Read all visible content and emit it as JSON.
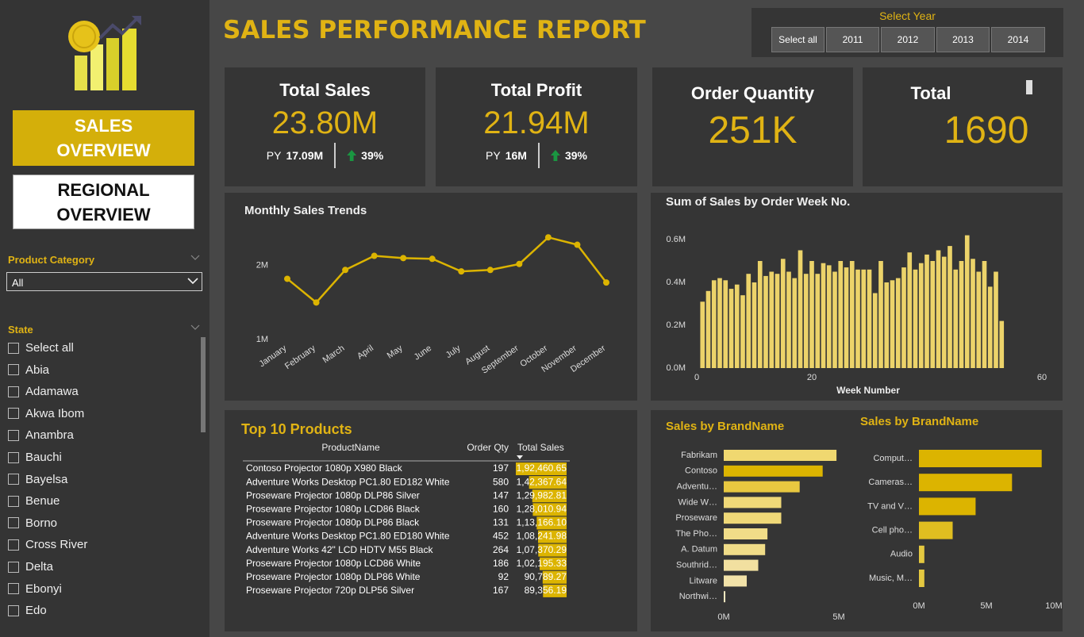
{
  "header": {
    "title": "SALES PERFORMANCE REPORT"
  },
  "nav": {
    "buttons": [
      "SALES OVERVIEW",
      "REGIONAL OVERVIEW"
    ]
  },
  "year_slicer": {
    "title": "Select Year",
    "options": [
      "Select all",
      "2011",
      "2012",
      "2013",
      "2014"
    ]
  },
  "category_slicer": {
    "title": "Product Category",
    "selected": "All"
  },
  "state_slicer": {
    "title": "State",
    "options": [
      "Select all",
      "Abia",
      "Adamawa",
      "Akwa Ibom",
      "Anambra",
      "Bauchi",
      "Bayelsa",
      "Benue",
      "Borno",
      "Cross River",
      "Delta",
      "Ebonyi",
      "Edo"
    ]
  },
  "kpis": [
    {
      "title": "Total Sales",
      "value": "23.80M",
      "py_label": "PY",
      "py_value": "17.09M",
      "change": "39%"
    },
    {
      "title": "Total Profit",
      "value": "21.94M",
      "py_label": "PY",
      "py_value": "16M",
      "change": "39%"
    },
    {
      "title": "Order Quantity",
      "value": "251K"
    },
    {
      "title": "Total",
      "value": "1690"
    }
  ],
  "table": {
    "title": "Top 10 Products",
    "columns": [
      "ProductName",
      "Order Qty",
      "Total Sales"
    ],
    "bar_color": "#dcb400",
    "rows": [
      {
        "product": "Contoso Projector 1080p X980 Black",
        "qty": 197,
        "sales": 192460.65,
        "sales_label": "1,92,460.65"
      },
      {
        "product": "Adventure Works Desktop PC1.80 ED182 White",
        "qty": 580,
        "sales": 142367.64,
        "sales_label": "1,42,367.64"
      },
      {
        "product": "Proseware Projector 1080p DLP86 Silver",
        "qty": 147,
        "sales": 129982.81,
        "sales_label": "1,29,982.81"
      },
      {
        "product": "Proseware Projector 1080p LCD86 Black",
        "qty": 160,
        "sales": 128010.94,
        "sales_label": "1,28,010.94"
      },
      {
        "product": "Proseware Projector 1080p DLP86 Black",
        "qty": 131,
        "sales": 113166.1,
        "sales_label": "1,13,166.10"
      },
      {
        "product": "Adventure Works Desktop PC1.80 ED180 White",
        "qty": 452,
        "sales": 108241.98,
        "sales_label": "1,08,241.98"
      },
      {
        "product": "Adventure Works 42\" LCD HDTV M55 Black",
        "qty": 264,
        "sales": 107370.29,
        "sales_label": "1,07,370.29"
      },
      {
        "product": "Proseware Projector 1080p LCD86 White",
        "qty": 186,
        "sales": 102195.33,
        "sales_label": "1,02,195.33"
      },
      {
        "product": "Proseware Projector 1080p DLP86 White",
        "qty": 92,
        "sales": 90789.27,
        "sales_label": "90,789.27"
      },
      {
        "product": "Proseware Projector 720p DLP56 Silver",
        "qty": 167,
        "sales": 89356.19,
        "sales_label": "89,356.19"
      }
    ]
  },
  "chart_data": [
    {
      "type": "line",
      "title": "Monthly Sales Trends",
      "color": "#dcb400",
      "categories": [
        "January",
        "February",
        "March",
        "April",
        "May",
        "June",
        "July",
        "August",
        "September",
        "October",
        "November",
        "December"
      ],
      "values": [
        1820000,
        1500000,
        1940000,
        2130000,
        2100000,
        2090000,
        1920000,
        1940000,
        2020000,
        2380000,
        2280000,
        1770000
      ],
      "ylim": [
        1000000,
        2500000
      ],
      "yticks": [
        {
          "value": 1000000,
          "label": "1M"
        },
        {
          "value": 2000000,
          "label": "2M"
        }
      ]
    },
    {
      "type": "bar",
      "title": "Sum of Sales by Order Week No.",
      "x_label": "Week Number",
      "color": "#ecd36a",
      "x": [
        1,
        2,
        3,
        4,
        5,
        6,
        7,
        8,
        9,
        10,
        11,
        12,
        13,
        14,
        15,
        16,
        17,
        18,
        19,
        20,
        21,
        22,
        23,
        24,
        25,
        26,
        27,
        28,
        29,
        30,
        31,
        32,
        33,
        34,
        35,
        36,
        37,
        38,
        39,
        40,
        41,
        42,
        43,
        44,
        45,
        46,
        47,
        48,
        49,
        50,
        51,
        52,
        53
      ],
      "values": [
        310000,
        360000,
        410000,
        420000,
        410000,
        370000,
        390000,
        340000,
        440000,
        400000,
        500000,
        430000,
        450000,
        440000,
        510000,
        450000,
        420000,
        550000,
        440000,
        500000,
        440000,
        490000,
        480000,
        450000,
        500000,
        470000,
        500000,
        460000,
        460000,
        460000,
        350000,
        500000,
        400000,
        410000,
        420000,
        470000,
        540000,
        460000,
        490000,
        530000,
        500000,
        550000,
        520000,
        570000,
        460000,
        500000,
        620000,
        510000,
        450000,
        500000,
        380000,
        450000,
        220000
      ],
      "xlim": [
        0,
        60
      ],
      "xticks": [
        0,
        20,
        60
      ],
      "ylim": [
        0,
        650000
      ],
      "yticks": [
        {
          "value": 0,
          "label": "0.0M"
        },
        {
          "value": 200000,
          "label": "0.2M"
        },
        {
          "value": 400000,
          "label": "0.4M"
        },
        {
          "value": 600000,
          "label": "0.6M"
        }
      ]
    },
    {
      "type": "hbar",
      "title": "Sales by BrandName",
      "categories": [
        "Fabrikam",
        "Contoso",
        "Adventu…",
        "Wide W…",
        "Proseware",
        "The Pho…",
        "A. Datum",
        "Southrid…",
        "Litware",
        "Northwi…"
      ],
      "values": [
        4900000,
        4300000,
        3300000,
        2500000,
        2500000,
        1900000,
        1800000,
        1500000,
        1000000,
        70000
      ],
      "colors": [
        "#f0d870",
        "#dcb400",
        "#e8c840",
        "#efd878",
        "#efd878",
        "#f0dc88",
        "#f0dc88",
        "#f2e0a0",
        "#f2e2a8",
        "#f5e8c0"
      ],
      "xlim": [
        0,
        5000000
      ],
      "xticks": [
        {
          "value": 0,
          "label": "0M"
        },
        {
          "value": 5000000,
          "label": "5M"
        }
      ]
    },
    {
      "type": "hbar",
      "title": "Sales by BrandName",
      "categories": [
        "Comput…",
        "Cameras…",
        "TV and V…",
        "Cell pho…",
        "Audio",
        "Music, M…"
      ],
      "values": [
        9100000,
        6900000,
        4200000,
        2500000,
        400000,
        400000
      ],
      "colors": [
        "#dcb400",
        "#dcb400",
        "#dcb400",
        "#e0be20",
        "#e4c840",
        "#e4c840"
      ],
      "xlim": [
        0,
        10000000
      ],
      "xticks": [
        {
          "value": 0,
          "label": "0M"
        },
        {
          "value": 5000000,
          "label": "5M"
        },
        {
          "value": 10000000,
          "label": "10M"
        }
      ]
    }
  ]
}
